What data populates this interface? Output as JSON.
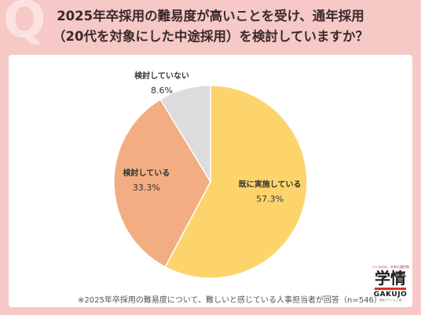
{
  "watermark": "Q",
  "title_line1": "2025年卒採用の難易度が高いことを受け、通年採用",
  "title_line2": "（20代を対象にした中途採用）を検討していますか？",
  "note": "※2025年卒採用の難易度について、難しいと感じている人事担当者が回答（n=546）",
  "logo": {
    "tagline": "つくるのは、未来の選択肢",
    "name": "学情",
    "sub": "GAKUJO",
    "tiny": "東証プライム上場"
  },
  "chart_data": {
    "type": "pie",
    "unit": "%",
    "slices": [
      {
        "label": "既に実施している",
        "value": 57.3,
        "display": "57.3%",
        "color": "#fdd46b"
      },
      {
        "label": "検討している",
        "value": 33.3,
        "display": "33.3%",
        "color": "#f2ad82"
      },
      {
        "label": "検討していない",
        "value": 8.6,
        "display": "8.6%",
        "color": "#dcdcdc"
      }
    ]
  }
}
